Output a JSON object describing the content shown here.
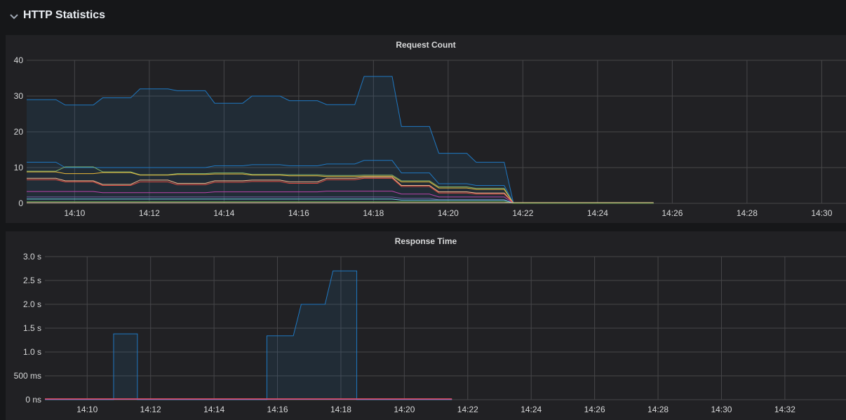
{
  "row": {
    "title": "HTTP Statistics",
    "icon": "chevron-down-icon"
  },
  "colors": {
    "background": "#161719",
    "panel": "#212124",
    "grid": "#464649",
    "primary_series": "#1f78c1"
  },
  "panels": {
    "request_count": {
      "title": "Request Count"
    },
    "response_time": {
      "title": "Response Time"
    }
  },
  "chart_data": [
    {
      "type": "area",
      "title": "Request Count",
      "x_unit": "time",
      "xlim": [
        "14:08:43",
        "14:30:30"
      ],
      "ylim": [
        0,
        40
      ],
      "y_ticks": [
        0,
        10,
        20,
        30,
        40
      ],
      "x_ticks": [
        "14:10",
        "14:12",
        "14:14",
        "14:16",
        "14:18",
        "14:20",
        "14:22",
        "14:24",
        "14:26",
        "14:28",
        "14:30"
      ],
      "grid": true,
      "legend": "none",
      "series": [
        {
          "color": "#1f78c1",
          "fill": true,
          "points": [
            [
              "14:08:43",
              29
            ],
            [
              "14:09:30",
              29
            ],
            [
              "14:09:45",
              27.5
            ],
            [
              "14:10:30",
              27.5
            ],
            [
              "14:10:45",
              29.5
            ],
            [
              "14:11:30",
              29.5
            ],
            [
              "14:11:45",
              32
            ],
            [
              "14:12:30",
              32
            ],
            [
              "14:12:45",
              31.5
            ],
            [
              "14:13:30",
              31.5
            ],
            [
              "14:13:45",
              28
            ],
            [
              "14:14:30",
              28
            ],
            [
              "14:14:45",
              30
            ],
            [
              "14:15:30",
              30
            ],
            [
              "14:15:45",
              28.7
            ],
            [
              "14:16:30",
              28.7
            ],
            [
              "14:16:45",
              27.6
            ],
            [
              "14:17:30",
              27.6
            ],
            [
              "14:17:45",
              35.5
            ],
            [
              "14:18:30",
              35.5
            ],
            [
              "14:18:45",
              21.5
            ],
            [
              "14:19:30",
              21.5
            ],
            [
              "14:19:45",
              14
            ],
            [
              "14:20:30",
              14
            ],
            [
              "14:20:45",
              11.5
            ],
            [
              "14:21:30",
              11.5
            ],
            [
              "14:21:45",
              0
            ],
            [
              "14:25:30",
              0
            ]
          ]
        },
        {
          "color": "#1f78c1",
          "fill": false,
          "points": [
            [
              "14:08:43",
              11.5
            ],
            [
              "14:09:30",
              11.5
            ],
            [
              "14:09:45",
              10
            ],
            [
              "14:13:30",
              10
            ],
            [
              "14:13:45",
              10.5
            ],
            [
              "14:14:30",
              10.5
            ],
            [
              "14:14:45",
              10.8
            ],
            [
              "14:15:30",
              10.8
            ],
            [
              "14:15:45",
              10.5
            ],
            [
              "14:16:30",
              10.5
            ],
            [
              "14:16:45",
              11
            ],
            [
              "14:17:30",
              11
            ],
            [
              "14:17:45",
              12
            ],
            [
              "14:18:30",
              12
            ],
            [
              "14:18:45",
              8.5
            ],
            [
              "14:19:30",
              8.5
            ],
            [
              "14:19:45",
              5.5
            ],
            [
              "14:20:30",
              5.5
            ],
            [
              "14:20:45",
              5
            ],
            [
              "14:21:30",
              5
            ],
            [
              "14:21:45",
              0
            ],
            [
              "14:25:30",
              0
            ]
          ]
        },
        {
          "color": "#7eb26d",
          "fill": false,
          "points": [
            [
              "14:08:43",
              9
            ],
            [
              "14:09:30",
              9
            ],
            [
              "14:09:45",
              10.2
            ],
            [
              "14:10:30",
              10.2
            ],
            [
              "14:10:45",
              8.8
            ],
            [
              "14:11:30",
              8.8
            ],
            [
              "14:11:45",
              8
            ],
            [
              "14:12:30",
              8
            ],
            [
              "14:12:45",
              8.3
            ],
            [
              "14:13:30",
              8.3
            ],
            [
              "14:13:45",
              8.5
            ],
            [
              "14:14:30",
              8.5
            ],
            [
              "14:14:45",
              8.1
            ],
            [
              "14:15:30",
              8.1
            ],
            [
              "14:15:45",
              8
            ],
            [
              "14:16:30",
              8
            ],
            [
              "14:16:45",
              7.8
            ],
            [
              "14:17:30",
              7.8
            ],
            [
              "14:17:45",
              7.9
            ],
            [
              "14:18:30",
              7.9
            ],
            [
              "14:18:45",
              6.3
            ],
            [
              "14:19:30",
              6.3
            ],
            [
              "14:19:45",
              4.6
            ],
            [
              "14:20:30",
              4.6
            ],
            [
              "14:20:45",
              4.2
            ],
            [
              "14:21:30",
              4.2
            ],
            [
              "14:21:45",
              0
            ],
            [
              "14:25:30",
              0
            ]
          ]
        },
        {
          "color": "#eab839",
          "fill": false,
          "points": [
            [
              "14:08:43",
              8.8
            ],
            [
              "14:09:30",
              8.8
            ],
            [
              "14:09:45",
              8.3
            ],
            [
              "14:10:30",
              8.3
            ],
            [
              "14:10:45",
              8.6
            ],
            [
              "14:11:30",
              8.6
            ],
            [
              "14:11:45",
              7.9
            ],
            [
              "14:12:30",
              7.9
            ],
            [
              "14:12:45",
              8.1
            ],
            [
              "14:13:30",
              8.1
            ],
            [
              "14:13:45",
              8.2
            ],
            [
              "14:14:30",
              8.2
            ],
            [
              "14:14:45",
              7.9
            ],
            [
              "14:15:30",
              7.9
            ],
            [
              "14:15:45",
              7.7
            ],
            [
              "14:16:30",
              7.7
            ],
            [
              "14:16:45",
              7.5
            ],
            [
              "14:17:30",
              7.5
            ],
            [
              "14:17:45",
              7.6
            ],
            [
              "14:18:30",
              7.6
            ],
            [
              "14:18:45",
              6
            ],
            [
              "14:19:30",
              6
            ],
            [
              "14:19:45",
              4.3
            ],
            [
              "14:20:30",
              4.3
            ],
            [
              "14:20:45",
              3.9
            ],
            [
              "14:21:30",
              3.9
            ],
            [
              "14:21:45",
              0
            ],
            [
              "14:25:30",
              0
            ]
          ]
        },
        {
          "color": "#f9ba8f",
          "fill": false,
          "points": [
            [
              "14:08:43",
              7
            ],
            [
              "14:09:30",
              7
            ],
            [
              "14:09:45",
              6.3
            ],
            [
              "14:10:30",
              6.3
            ],
            [
              "14:10:45",
              5.3
            ],
            [
              "14:11:30",
              5.3
            ],
            [
              "14:11:45",
              6.5
            ],
            [
              "14:12:30",
              6.5
            ],
            [
              "14:12:45",
              5.6
            ],
            [
              "14:13:30",
              5.6
            ],
            [
              "14:13:45",
              6.3
            ],
            [
              "14:14:30",
              6.3
            ],
            [
              "14:14:45",
              6.5
            ],
            [
              "14:15:30",
              6.5
            ],
            [
              "14:15:45",
              6
            ],
            [
              "14:16:30",
              6
            ],
            [
              "14:16:45",
              7
            ],
            [
              "14:17:30",
              7
            ],
            [
              "14:17:45",
              7.3
            ],
            [
              "14:18:30",
              7.3
            ],
            [
              "14:18:45",
              5
            ],
            [
              "14:19:30",
              5
            ],
            [
              "14:19:45",
              3.2
            ],
            [
              "14:20:30",
              3.2
            ],
            [
              "14:20:45",
              2.9
            ],
            [
              "14:21:30",
              2.9
            ],
            [
              "14:21:45",
              0
            ],
            [
              "14:25:30",
              0
            ]
          ]
        },
        {
          "color": "#e24d42",
          "fill": false,
          "points": [
            [
              "14:08:43",
              6.6
            ],
            [
              "14:09:30",
              6.6
            ],
            [
              "14:09:45",
              6
            ],
            [
              "14:10:30",
              6
            ],
            [
              "14:10:45",
              5
            ],
            [
              "14:11:30",
              5
            ],
            [
              "14:11:45",
              6
            ],
            [
              "14:12:30",
              6
            ],
            [
              "14:12:45",
              5.2
            ],
            [
              "14:13:30",
              5.2
            ],
            [
              "14:13:45",
              5.9
            ],
            [
              "14:14:30",
              5.9
            ],
            [
              "14:14:45",
              6.1
            ],
            [
              "14:15:30",
              6.1
            ],
            [
              "14:15:45",
              5.6
            ],
            [
              "14:16:30",
              5.6
            ],
            [
              "14:16:45",
              6.6
            ],
            [
              "14:17:30",
              6.6
            ],
            [
              "14:17:45",
              7
            ],
            [
              "14:18:30",
              7
            ],
            [
              "14:18:45",
              4.7
            ],
            [
              "14:19:30",
              4.7
            ],
            [
              "14:19:45",
              2.9
            ],
            [
              "14:20:30",
              2.9
            ],
            [
              "14:20:45",
              2.6
            ],
            [
              "14:21:30",
              2.6
            ],
            [
              "14:21:45",
              0
            ],
            [
              "14:25:30",
              0
            ]
          ]
        },
        {
          "color": "#ba43a9",
          "fill": false,
          "points": [
            [
              "14:08:43",
              3.3
            ],
            [
              "14:10:30",
              3.3
            ],
            [
              "14:10:45",
              3
            ],
            [
              "14:13:30",
              3
            ],
            [
              "14:13:45",
              3.2
            ],
            [
              "14:16:30",
              3.2
            ],
            [
              "14:16:45",
              3.4
            ],
            [
              "14:18:30",
              3.4
            ],
            [
              "14:18:45",
              2.6
            ],
            [
              "14:19:30",
              2.6
            ],
            [
              "14:19:45",
              1.8
            ],
            [
              "14:21:30",
              1.8
            ],
            [
              "14:21:45",
              0
            ],
            [
              "14:25:30",
              0
            ]
          ]
        },
        {
          "color": "#705da0",
          "fill": false,
          "points": [
            [
              "14:08:43",
              1.8
            ],
            [
              "14:18:30",
              1.8
            ],
            [
              "14:18:45",
              1.4
            ],
            [
              "14:19:30",
              1.4
            ],
            [
              "14:19:45",
              1
            ],
            [
              "14:21:30",
              1
            ],
            [
              "14:21:45",
              0
            ],
            [
              "14:25:30",
              0
            ]
          ]
        },
        {
          "color": "#6ed0e0",
          "fill": false,
          "points": [
            [
              "14:08:43",
              1.2
            ],
            [
              "14:18:30",
              1.2
            ],
            [
              "14:18:45",
              0.9
            ],
            [
              "14:21:30",
              0.9
            ],
            [
              "14:21:45",
              0
            ],
            [
              "14:25:30",
              0
            ]
          ]
        },
        {
          "color": "#508642",
          "fill": false,
          "points": [
            [
              "14:08:43",
              0.5
            ],
            [
              "14:21:30",
              0.5
            ],
            [
              "14:21:45",
              0
            ],
            [
              "14:25:30",
              0
            ]
          ]
        },
        {
          "color": "#f4d598",
          "fill": false,
          "points": [
            [
              "14:08:43",
              0.2
            ],
            [
              "14:25:30",
              0.2
            ]
          ]
        }
      ]
    },
    {
      "type": "area",
      "title": "Response Time",
      "x_unit": "time",
      "xlim": [
        "14:08:40",
        "14:33:45"
      ],
      "ylim": [
        0,
        3.0
      ],
      "y_unit": "s",
      "y_ticks": [
        0,
        0.5,
        1.0,
        1.5,
        2.0,
        2.5,
        3.0
      ],
      "y_tick_labels": [
        "0 ns",
        "500 ms",
        "1.0 s",
        "1.5 s",
        "2.0 s",
        "2.5 s",
        "3.0 s"
      ],
      "x_ticks": [
        "14:10",
        "14:12",
        "14:14",
        "14:16",
        "14:18",
        "14:20",
        "14:22",
        "14:24",
        "14:26",
        "14:28",
        "14:30",
        "14:32"
      ],
      "grid": true,
      "legend": "none",
      "series": [
        {
          "color": "#1f78c1",
          "fill": true,
          "points": [
            [
              "14:08:40",
              0
            ],
            [
              "14:10:50",
              0
            ],
            [
              "14:10:50",
              1.38
            ],
            [
              "14:11:35",
              1.38
            ],
            [
              "14:11:35",
              0
            ],
            [
              "14:15:40",
              0
            ],
            [
              "14:15:40",
              1.34
            ],
            [
              "14:16:30",
              1.34
            ],
            [
              "14:16:45",
              2.0
            ],
            [
              "14:17:30",
              2.0
            ],
            [
              "14:17:45",
              2.7
            ],
            [
              "14:18:30",
              2.7
            ],
            [
              "14:18:30",
              0
            ],
            [
              "14:21:30",
              0
            ]
          ]
        },
        {
          "color": "#e24d42",
          "fill": false,
          "points": [
            [
              "14:08:40",
              0.02
            ],
            [
              "14:21:30",
              0.02
            ]
          ]
        },
        {
          "color": "#f4d598",
          "fill": false,
          "points": [
            [
              "14:08:40",
              0.005
            ],
            [
              "14:21:30",
              0.005
            ]
          ]
        },
        {
          "color": "#ba43a9",
          "fill": false,
          "points": [
            [
              "14:08:40",
              0.01
            ],
            [
              "14:21:30",
              0.01
            ]
          ]
        }
      ]
    }
  ]
}
